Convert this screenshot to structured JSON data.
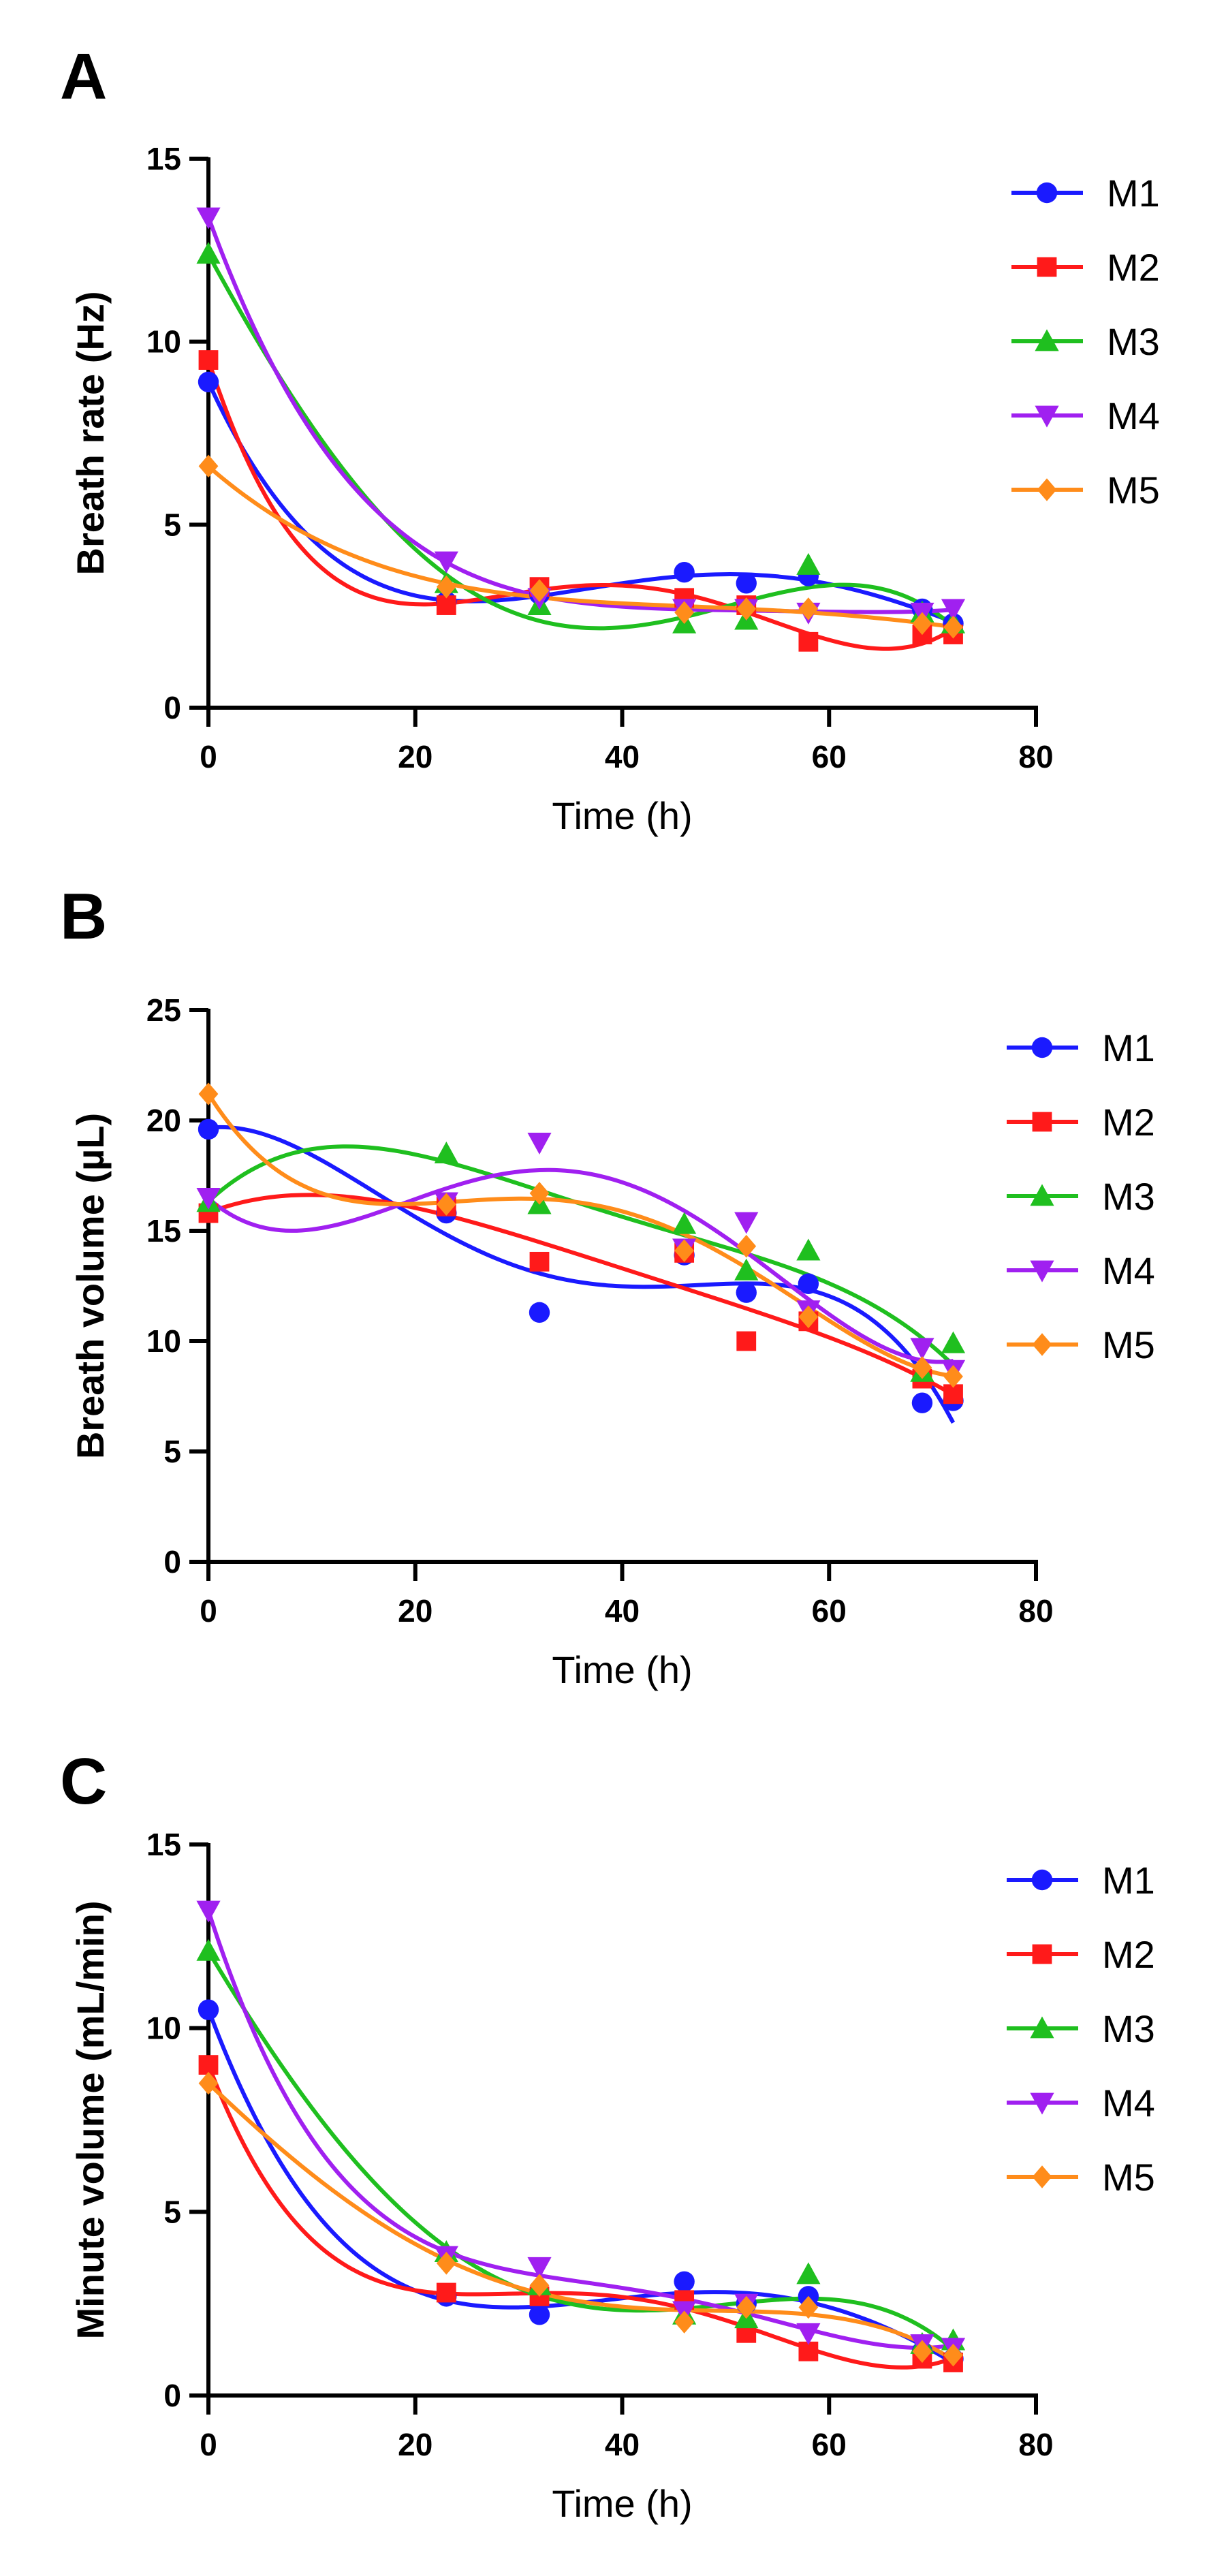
{
  "chart_data": [
    {
      "type": "scatter",
      "panel": "A",
      "title": "",
      "xlabel": "Time (h)",
      "ylabel": "Breath rate (Hz)",
      "xlim": [
        0,
        80
      ],
      "ylim": [
        0,
        15
      ],
      "xticks": [
        0,
        20,
        40,
        60,
        80
      ],
      "yticks": [
        0,
        5,
        10,
        15
      ],
      "legend": "right",
      "x": [
        0,
        23,
        32,
        46,
        52,
        58,
        69,
        72
      ],
      "series": [
        {
          "name": "M1",
          "values": [
            8.9,
            2.9,
            3.1,
            3.7,
            3.4,
            3.6,
            2.7,
            2.3
          ]
        },
        {
          "name": "M2",
          "values": [
            9.5,
            2.8,
            3.3,
            3.0,
            2.8,
            1.8,
            2.0,
            2.0
          ]
        },
        {
          "name": "M3",
          "values": [
            12.4,
            3.4,
            2.8,
            2.3,
            2.4,
            3.9,
            2.6,
            2.3
          ]
        },
        {
          "name": "M4",
          "values": [
            13.4,
            4.0,
            3.0,
            2.7,
            2.7,
            2.6,
            2.6,
            2.7
          ]
        },
        {
          "name": "M5",
          "values": [
            6.6,
            3.3,
            3.2,
            2.6,
            2.7,
            2.7,
            2.3,
            2.2
          ]
        }
      ]
    },
    {
      "type": "scatter",
      "panel": "B",
      "title": "",
      "xlabel": "Time (h)",
      "ylabel": "Breath volume  (µL)",
      "xlim": [
        0,
        80
      ],
      "ylim": [
        0,
        25
      ],
      "xticks": [
        0,
        20,
        40,
        60,
        80
      ],
      "yticks": [
        0,
        5,
        10,
        15,
        20,
        25
      ],
      "legend": "right",
      "x": [
        0,
        23,
        32,
        46,
        52,
        58,
        69,
        72
      ],
      "series": [
        {
          "name": "M1",
          "values": [
            19.6,
            15.8,
            11.3,
            13.9,
            12.2,
            12.6,
            7.2,
            7.3
          ]
        },
        {
          "name": "M2",
          "values": [
            15.8,
            16.1,
            13.6,
            14.0,
            10.0,
            10.9,
            8.3,
            7.6
          ]
        },
        {
          "name": "M3",
          "values": [
            16.3,
            18.5,
            16.2,
            15.3,
            13.2,
            14.1,
            8.6,
            9.9
          ]
        },
        {
          "name": "M4",
          "values": [
            16.5,
            16.3,
            19.0,
            14.2,
            15.4,
            11.4,
            9.7,
            8.7
          ]
        },
        {
          "name": "M5",
          "values": [
            21.2,
            16.2,
            16.7,
            14.1,
            14.3,
            11.1,
            8.8,
            8.4
          ]
        }
      ]
    },
    {
      "type": "scatter",
      "panel": "C",
      "title": "",
      "xlabel": "Time (h)",
      "ylabel": "Minute volume  (mL/min)",
      "xlim": [
        0,
        80
      ],
      "ylim": [
        0,
        15
      ],
      "xticks": [
        0,
        20,
        40,
        60,
        80
      ],
      "yticks": [
        0,
        5,
        10,
        15
      ],
      "legend": "right",
      "x": [
        0,
        23,
        32,
        46,
        52,
        58,
        69,
        72
      ],
      "series": [
        {
          "name": "M1",
          "values": [
            10.5,
            2.7,
            2.2,
            3.1,
            2.5,
            2.7,
            1.2,
            1.0
          ]
        },
        {
          "name": "M2",
          "values": [
            9.0,
            2.8,
            2.7,
            2.6,
            1.7,
            1.2,
            1.0,
            0.9
          ]
        },
        {
          "name": "M3",
          "values": [
            12.1,
            3.9,
            3.0,
            2.2,
            2.1,
            3.3,
            1.4,
            1.5
          ]
        },
        {
          "name": "M4",
          "values": [
            13.2,
            3.8,
            3.5,
            2.3,
            2.5,
            1.7,
            1.4,
            1.3
          ]
        },
        {
          "name": "M5",
          "values": [
            8.5,
            3.6,
            3.0,
            2.0,
            2.4,
            2.4,
            1.2,
            1.1
          ]
        }
      ]
    }
  ],
  "styles": {
    "M1": {
      "color": "#1a1aff",
      "marker": "circle"
    },
    "M2": {
      "color": "#ff1a1a",
      "marker": "square"
    },
    "M3": {
      "color": "#1fbf1f",
      "marker": "triangle-up"
    },
    "M4": {
      "color": "#a020f0",
      "marker": "triangle-down"
    },
    "M5": {
      "color": "#ff8c1a",
      "marker": "diamond"
    }
  }
}
